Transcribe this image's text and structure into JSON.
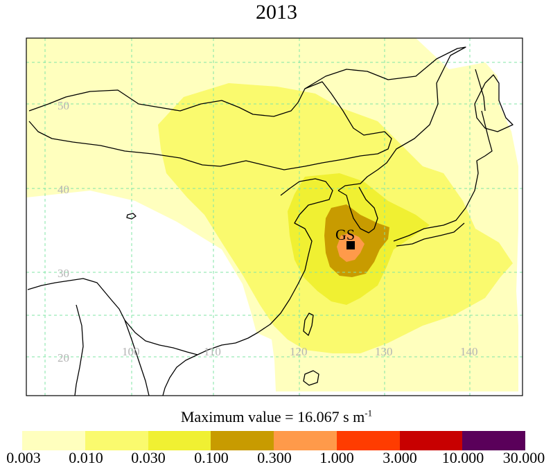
{
  "title": "2013",
  "colors": {
    "c1": "#ffffbe",
    "c2": "#fafa6e",
    "c3": "#f0f032",
    "c4": "#c89b00",
    "c5": "#ff9a4a",
    "c6": "#ff3c00",
    "c7": "#c80000",
    "c8": "#5a005a",
    "grid": "#7fe6a6",
    "coast": "#000000"
  },
  "grid_labels": {
    "lat": [
      "50",
      "40",
      "30",
      "20"
    ],
    "lon": [
      "100",
      "110",
      "120",
      "130",
      "140"
    ]
  },
  "station": {
    "label": "GS"
  },
  "max_value": {
    "prefix": "Maximum value = 16.067 s m",
    "exponent": "-1"
  },
  "colorbar": {
    "ticks": [
      "0.003",
      "0.010",
      "0.030",
      "0.100",
      "0.300",
      "1.000",
      "3.000",
      "10.000",
      "30.000"
    ]
  }
}
